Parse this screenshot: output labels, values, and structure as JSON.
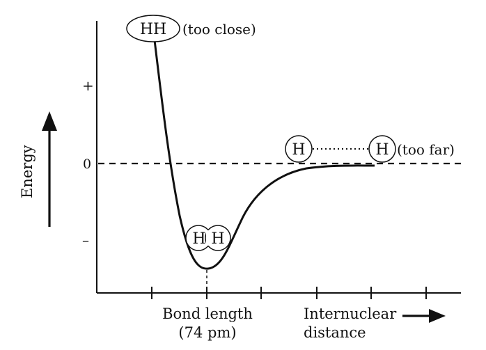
{
  "chart_data": {
    "type": "line",
    "title": "",
    "xlabel": "Internuclear distance",
    "xlabel_line1": "Internuclear",
    "xlabel_line2": "distance",
    "ylabel": "Energy",
    "y_ticks": {
      "plus": "+",
      "zero": "0",
      "minus": "–"
    },
    "bond_length_line1": "Bond length",
    "bond_length_line2": "(74 pm)",
    "bond_length_pm": 74,
    "annotations": {
      "too_close": {
        "atoms": "HH",
        "note": "(too close)"
      },
      "bonded": {
        "atom_left": "H",
        "atom_right": "H"
      },
      "too_far": {
        "atom_left": "H",
        "atom_right": "H",
        "note": "(too far)"
      }
    },
    "colors": {
      "curve": "#111111",
      "axes": "#111111",
      "background": "#ffffff"
    }
  }
}
